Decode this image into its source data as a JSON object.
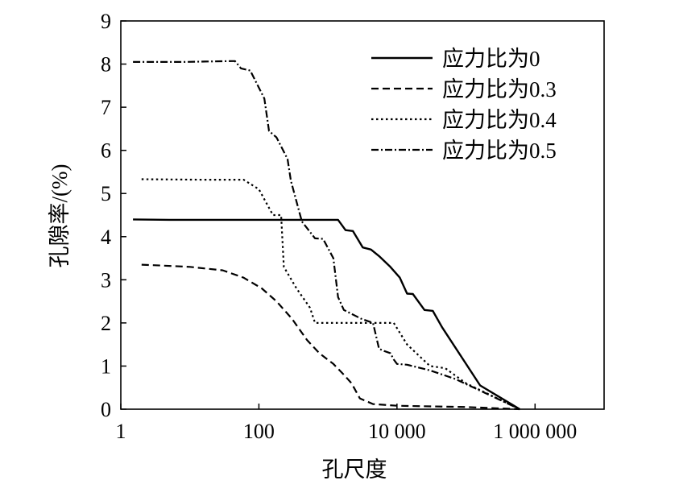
{
  "chart_data": {
    "type": "line",
    "title": "",
    "xlabel": "孔尺度",
    "ylabel": "孔隙率/(%)",
    "xscale": "log",
    "xlim": [
      1,
      10000000
    ],
    "ylim": [
      0,
      9
    ],
    "x_ticks": [
      1,
      100,
      10000,
      1000000
    ],
    "x_tick_labels": [
      "1",
      "100",
      "10 000",
      "1 000 000"
    ],
    "y_ticks": [
      0,
      1,
      2,
      3,
      4,
      5,
      6,
      7,
      8,
      9
    ],
    "y_tick_labels": [
      "0",
      "1",
      "2",
      "3",
      "4",
      "5",
      "6",
      "7",
      "8",
      "9"
    ],
    "grid": false,
    "legend_position": "top-right",
    "series": [
      {
        "name": "应力比为0",
        "line_style": "solid",
        "points": [
          [
            1.5,
            4.4
          ],
          [
            5,
            4.39
          ],
          [
            150,
            4.39
          ],
          [
            1400,
            4.39
          ],
          [
            1800,
            4.15
          ],
          [
            2300,
            4.13
          ],
          [
            3200,
            3.75
          ],
          [
            4200,
            3.7
          ],
          [
            5500,
            3.55
          ],
          [
            8000,
            3.3
          ],
          [
            11000,
            3.05
          ],
          [
            14000,
            2.68
          ],
          [
            17000,
            2.67
          ],
          [
            25000,
            2.3
          ],
          [
            33000,
            2.28
          ],
          [
            45000,
            1.9
          ],
          [
            160000,
            0.55
          ],
          [
            600000,
            0.0
          ]
        ]
      },
      {
        "name": "应力比为0.3",
        "line_style": "dashed",
        "points": [
          [
            2,
            3.35
          ],
          [
            4,
            3.33
          ],
          [
            10,
            3.3
          ],
          [
            30,
            3.22
          ],
          [
            60,
            3.05
          ],
          [
            110,
            2.8
          ],
          [
            180,
            2.5
          ],
          [
            300,
            2.1
          ],
          [
            500,
            1.6
          ],
          [
            750,
            1.3
          ],
          [
            1200,
            1.05
          ],
          [
            1700,
            0.8
          ],
          [
            2200,
            0.6
          ],
          [
            2900,
            0.25
          ],
          [
            4500,
            0.12
          ],
          [
            10000,
            0.08
          ],
          [
            100000,
            0.05
          ],
          [
            600000,
            0.0
          ]
        ]
      },
      {
        "name": "应力比为0.4",
        "line_style": "dotted",
        "points": [
          [
            2,
            5.33
          ],
          [
            15,
            5.32
          ],
          [
            60,
            5.32
          ],
          [
            100,
            5.1
          ],
          [
            160,
            4.5
          ],
          [
            210,
            4.5
          ],
          [
            230,
            3.3
          ],
          [
            350,
            2.8
          ],
          [
            550,
            2.35
          ],
          [
            650,
            2.0
          ],
          [
            3000,
            2.0
          ],
          [
            6000,
            2.0
          ],
          [
            9000,
            2.0
          ],
          [
            14000,
            1.5
          ],
          [
            30000,
            1.0
          ],
          [
            50000,
            0.95
          ],
          [
            100000,
            0.6
          ],
          [
            600000,
            0.0
          ]
        ]
      },
      {
        "name": "应力比为0.5",
        "line_style": "dashdot",
        "points": [
          [
            1.5,
            8.05
          ],
          [
            8,
            8.05
          ],
          [
            40,
            8.07
          ],
          [
            45,
            8.07
          ],
          [
            55,
            7.9
          ],
          [
            75,
            7.85
          ],
          [
            120,
            7.2
          ],
          [
            140,
            6.45
          ],
          [
            180,
            6.3
          ],
          [
            260,
            5.8
          ],
          [
            290,
            5.3
          ],
          [
            420,
            4.35
          ],
          [
            650,
            3.96
          ],
          [
            850,
            3.95
          ],
          [
            1200,
            3.5
          ],
          [
            1400,
            2.6
          ],
          [
            1700,
            2.3
          ],
          [
            3000,
            2.1
          ],
          [
            4500,
            2.0
          ],
          [
            5500,
            1.4
          ],
          [
            6500,
            1.35
          ],
          [
            8000,
            1.3
          ],
          [
            9000,
            1.15
          ],
          [
            10000,
            1.05
          ],
          [
            14000,
            1.03
          ],
          [
            30000,
            0.9
          ],
          [
            70000,
            0.7
          ],
          [
            600000,
            0.0
          ]
        ]
      }
    ]
  }
}
